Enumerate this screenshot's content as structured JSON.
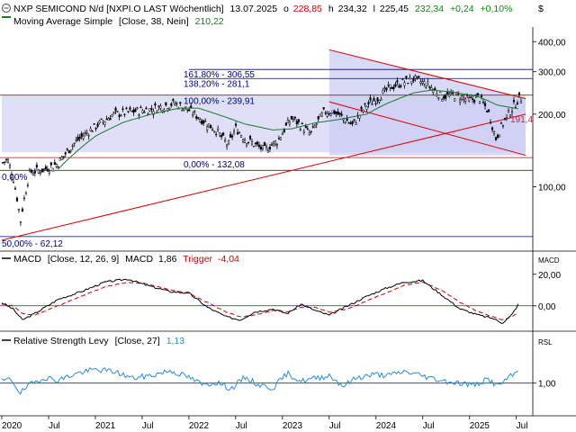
{
  "header": {
    "icon": "circle-minus-icon",
    "title": "NXP SEMICOND N/d [NXPI.O LAST Wöchentlich]",
    "date": "13.07.2025",
    "o_label": "o",
    "o_value": "228,85",
    "h_label": "h",
    "h_value": "234,32",
    "l_label": "l",
    "l_value": "225,45",
    "last": "232,34",
    "change": "+0,24",
    "change_pct": "+0,10%",
    "corner": "$",
    "ma_label": "Moving Average Simple",
    "ma_params": "[Close, 38, Nein]",
    "ma_value": "210,22"
  },
  "colors": {
    "price": "#000000",
    "ma": "#1a7a2a",
    "up": "#0000ff",
    "down": "#ff0000",
    "fib": "#000080",
    "trend": "#dd0000",
    "macd_line": "#000000",
    "trigger": "#cc0000",
    "rsl": "#2a8cd8",
    "shade": "#d9d9f7"
  },
  "fib": {
    "l1618": "161,80% - 306,55",
    "l1382": "138,20% - 281,1",
    "l100": "100,00% - 239,91",
    "l0": "0,00% - 132,08",
    "l50": "50,00% - 62,12",
    "left0": "0,00%",
    "side": "191,4"
  },
  "price_axis": [
    "400,00",
    "300,00",
    "200,00",
    "100,00"
  ],
  "macd": {
    "name": "MACD",
    "params": "[Close, 12, 26, 9]",
    "value_label": "MACD",
    "value": "1,86",
    "trigger_label": "Trigger",
    "trigger_value": "-4,04",
    "axis_title": "MACD",
    "ticks": [
      "20,00",
      "0,00"
    ]
  },
  "rsl": {
    "name": "Relative Strength Levy",
    "params": "[Close, 27]",
    "value": "1,13",
    "axis_title": "RSL",
    "ticks": [
      "1,00"
    ]
  },
  "x_axis": [
    "2020",
    "Jul",
    "2021",
    "Jul",
    "2022",
    "Jul",
    "2023",
    "Jul",
    "2024",
    "Jul",
    "2025",
    "Jul"
  ],
  "chart_data": {
    "type": "line",
    "title": "NXP SEMICOND N/d [NXPI.O LAST Wöchentlich]",
    "xlabel": "",
    "ylabel": "",
    "y_scale": "log",
    "ylim": [
      55,
      460
    ],
    "x_ticks": [
      "2020",
      "Jul",
      "2021",
      "Jul",
      "2022",
      "Jul",
      "2023",
      "Jul",
      "2024",
      "Jul",
      "2025",
      "Jul"
    ],
    "anchors": {
      "dates": [
        2020.0,
        2020.06,
        2020.12,
        2020.2,
        2020.3,
        2020.45,
        2020.6,
        2020.8,
        2020.95,
        2021.2,
        2021.4,
        2021.6,
        2021.85,
        2022.0,
        2022.15,
        2022.3,
        2022.42,
        2022.5,
        2022.6,
        2022.8,
        2022.95,
        2023.1,
        2023.3,
        2023.45,
        2023.55,
        2023.75,
        2023.9,
        2024.0,
        2024.15,
        2024.3,
        2024.4,
        2024.55,
        2024.7,
        2024.85,
        2025.0,
        2025.1,
        2025.2,
        2025.28,
        2025.4,
        2025.53
      ],
      "close": [
        125,
        130,
        110,
        72,
        115,
        118,
        125,
        155,
        172,
        200,
        205,
        210,
        222,
        208,
        188,
        170,
        148,
        175,
        158,
        142,
        155,
        193,
        165,
        205,
        205,
        180,
        218,
        230,
        258,
        272,
        280,
        265,
        238,
        240,
        228,
        236,
        205,
        158,
        196,
        232.34
      ]
    },
    "moving_average": {
      "name": "Moving Average Simple",
      "period": 38,
      "last": 210.22,
      "dates": [
        2020.6,
        2020.8,
        2021.0,
        2021.3,
        2021.6,
        2021.9,
        2022.1,
        2022.3,
        2022.6,
        2022.9,
        2023.1,
        2023.35,
        2023.6,
        2023.9,
        2024.1,
        2024.4,
        2024.6,
        2024.85,
        2025.1,
        2025.3,
        2025.53
      ],
      "values": [
        118,
        140,
        162,
        185,
        200,
        212,
        212,
        200,
        182,
        172,
        174,
        184,
        190,
        200,
        220,
        245,
        252,
        246,
        236,
        218,
        210.22
      ]
    },
    "fibonacci": [
      {
        "label": "161,80%",
        "value": 306.55
      },
      {
        "label": "138,20%",
        "value": 281.1
      },
      {
        "label": "100,00%",
        "value": 239.91
      },
      {
        "label": "0,00%",
        "value": 132.08
      },
      {
        "label": "50,00%",
        "value": 62.12
      }
    ],
    "horizontal_line": 117,
    "channel_label": 191.4,
    "trendlines": [
      {
        "name": "support",
        "from": [
          2020.0,
          60
        ],
        "to": [
          2025.6,
          200
        ]
      },
      {
        "name": "upper-channel",
        "from": [
          2023.5,
          370
        ],
        "to": [
          2025.6,
          232
        ]
      },
      {
        "name": "lower-channel",
        "from": [
          2023.5,
          225
        ],
        "to": [
          2025.6,
          135
        ]
      }
    ],
    "shaded_zones": [
      {
        "from_date": 2020.0,
        "to_date": 2025.6,
        "low": 139,
        "high": 240
      },
      {
        "from_date": 2023.5,
        "to_date": 2025.6,
        "low": 135,
        "high": 370
      }
    ],
    "macd": {
      "params": [
        12,
        26,
        9
      ],
      "value": 1.86,
      "trigger": -4.04,
      "ylim": [
        -15,
        25
      ],
      "dates": [
        2020.0,
        2020.12,
        2020.22,
        2020.35,
        2020.6,
        2020.85,
        2021.1,
        2021.35,
        2021.55,
        2021.8,
        2022.0,
        2022.2,
        2022.4,
        2022.55,
        2022.7,
        2022.9,
        2023.05,
        2023.2,
        2023.35,
        2023.5,
        2023.7,
        2023.9,
        2024.1,
        2024.3,
        2024.5,
        2024.7,
        2024.9,
        2025.1,
        2025.25,
        2025.35,
        2025.45,
        2025.53
      ],
      "values": [
        2,
        -2,
        -9,
        -5,
        4,
        9,
        15,
        17,
        13,
        9,
        8,
        -1,
        -7,
        -9,
        -4,
        -2,
        -5,
        1,
        -3,
        -6,
        0,
        6,
        11,
        15,
        16,
        7,
        -2,
        -6,
        -8,
        -11,
        -6,
        1.86
      ],
      "trigger_values": [
        1,
        0,
        -5,
        -6,
        0,
        6,
        12,
        15,
        14,
        10,
        8,
        2,
        -4,
        -7,
        -6,
        -3,
        -4,
        -1,
        -1,
        -4,
        -2,
        3,
        8,
        13,
        15,
        10,
        2,
        -4,
        -7,
        -9,
        -7,
        -4.04
      ]
    },
    "rsl": {
      "period": 27,
      "value": 1.13,
      "ylim": [
        0.7,
        1.35
      ],
      "dates": [
        2020.0,
        2020.1,
        2020.2,
        2020.3,
        2020.45,
        2020.6,
        2020.8,
        2021.0,
        2021.2,
        2021.4,
        2021.6,
        2021.8,
        2022.0,
        2022.15,
        2022.3,
        2022.45,
        2022.6,
        2022.75,
        2022.9,
        2023.05,
        2023.2,
        2023.35,
        2023.5,
        2023.65,
        2023.8,
        2024.0,
        2024.15,
        2024.3,
        2024.45,
        2024.6,
        2024.75,
        2024.9,
        2025.05,
        2025.2,
        2025.3,
        2025.4,
        2025.53
      ],
      "values": [
        1.02,
        1.04,
        0.9,
        0.98,
        1.06,
        1.03,
        1.1,
        1.14,
        1.12,
        1.05,
        1.08,
        1.13,
        1.06,
        0.98,
        1.01,
        0.94,
        1.06,
        0.98,
        0.95,
        1.1,
        1.02,
        1.05,
        1.08,
        0.97,
        1.06,
        1.09,
        1.08,
        1.12,
        1.09,
        1.05,
        1.02,
        1.0,
        0.98,
        1.04,
        0.97,
        1.04,
        1.13
      ]
    }
  }
}
